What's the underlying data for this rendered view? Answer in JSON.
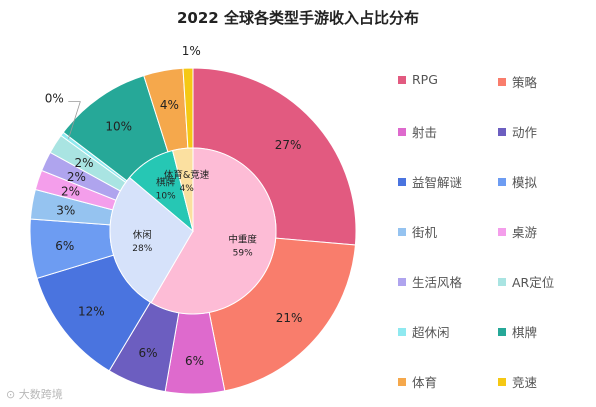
{
  "chart_data": {
    "type": "pie",
    "title": "2022 全球各类型手游收入占比分布",
    "outer_ring": [
      {
        "name": "RPG",
        "value": 27,
        "label": "27%",
        "color": "#E25A80"
      },
      {
        "name": "策略",
        "value": 21,
        "label": "21%",
        "color": "#F97D6C"
      },
      {
        "name": "射击",
        "value": 6,
        "label": "6%",
        "color": "#DE6ACD"
      },
      {
        "name": "动作",
        "value": 6,
        "label": "6%",
        "color": "#6C5EC0"
      },
      {
        "name": "益智解谜",
        "value": 12,
        "label": "12%",
        "color": "#4A74DF"
      },
      {
        "name": "模拟",
        "value": 6,
        "label": "6%",
        "color": "#6D9CF2"
      },
      {
        "name": "街机",
        "value": 3,
        "label": "3%",
        "color": "#95C3F0"
      },
      {
        "name": "桌游",
        "value": 2,
        "label": "2%",
        "color": "#F49EEB"
      },
      {
        "name": "生活风格",
        "value": 2,
        "label": "2%",
        "color": "#AFA4EE"
      },
      {
        "name": "AR定位",
        "value": 2,
        "label": "2%",
        "color": "#A9E4E2"
      },
      {
        "name": "超休闲",
        "value": 0.4,
        "label": "0%",
        "color": "#8FE9F0"
      },
      {
        "name": "棋牌",
        "value": 10,
        "label": "10%",
        "color": "#26A898"
      },
      {
        "name": "体育",
        "value": 4,
        "label": "4%",
        "color": "#F5A84C"
      },
      {
        "name": "竞速",
        "value": 1,
        "label": "1%",
        "color": "#F5C814"
      }
    ],
    "inner_ring": [
      {
        "name": "中重度",
        "value": 59,
        "label": "59%",
        "color": "#FDBCD6"
      },
      {
        "name": "休闲",
        "value": 28,
        "label": "28%",
        "color": "#D6E2FA"
      },
      {
        "name": "棋牌",
        "value": 10,
        "label": "10%",
        "color": "#26C7B4"
      },
      {
        "name": "体育&竞速",
        "value": 4,
        "label": "4%",
        "color": "#FBE0A0"
      }
    ],
    "legend": {
      "placement": "right",
      "items": [
        "RPG",
        "策略",
        "射击",
        "动作",
        "益智解谜",
        "模拟",
        "街机",
        "桌游",
        "生活风格",
        "AR定位",
        "超休闲",
        "棋牌",
        "体育",
        "竞速"
      ]
    }
  },
  "watermark": "大数跨境"
}
